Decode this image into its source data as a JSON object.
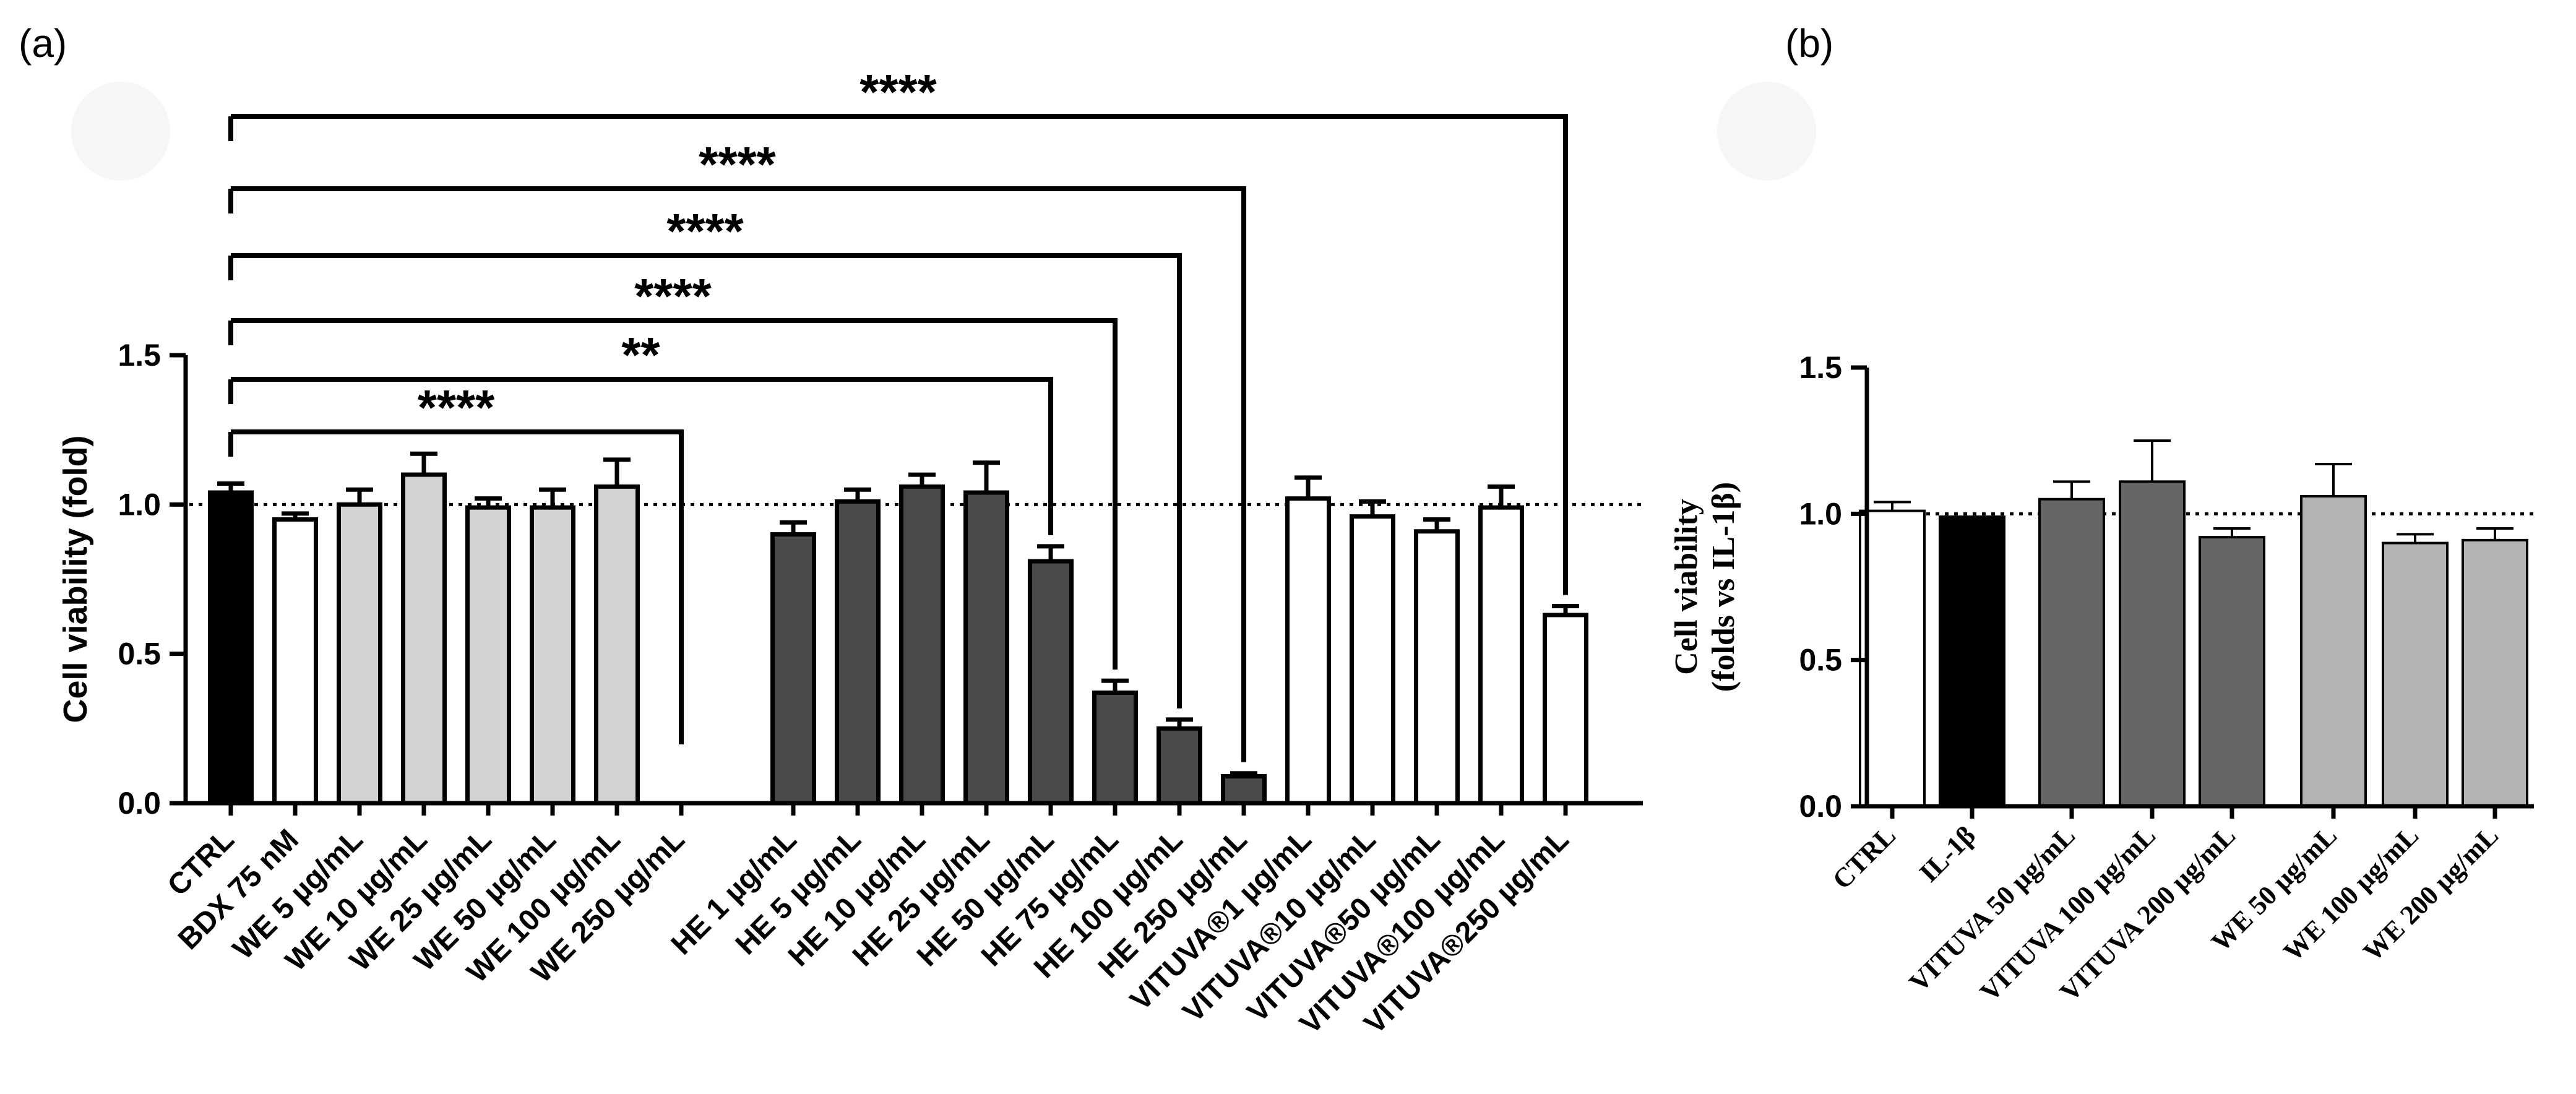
{
  "chart_data": [
    {
      "panel": "(a)",
      "type": "bar",
      "ylabel": "Cell viability (fold)",
      "xlabel": "",
      "ylim": [
        0,
        1.5
      ],
      "yticks": [
        "0.0",
        "0.5",
        "1.0",
        "1.5"
      ],
      "ytick_values": [
        0,
        0.5,
        1.0,
        1.5
      ],
      "reference_line": 1.0,
      "categories": [
        "CTRL",
        "BDX 75 nM",
        "WE 5 µg/mL",
        "WE 10 µg/mL",
        "WE 25 µg/mL",
        "WE 50 µg/mL",
        "WE 100 µg/mL",
        "WE 250 µg/mL",
        "HE 1 µg/mL",
        "HE 5 µg/mL",
        "HE 10 µg/mL",
        "HE 25 µg/mL",
        "HE 50 µg/mL",
        "HE 75 µg/mL",
        "HE 100 µg/mL",
        "HE 250 µg/mL",
        "VITUVA®1 µg/mL",
        "VITUVA®10 µg/mL",
        "VITUVA®50 µg/mL",
        "VITUVA®100 µg/mL",
        "VITUVA®250 µg/mL"
      ],
      "values": [
        1.04,
        0.95,
        1.0,
        1.1,
        0.99,
        0.99,
        1.06,
        0.0,
        0.9,
        1.01,
        1.06,
        1.04,
        0.81,
        0.37,
        0.25,
        0.09,
        1.02,
        0.96,
        0.91,
        0.99,
        0.63
      ],
      "errors": [
        0.03,
        0.02,
        0.05,
        0.07,
        0.03,
        0.06,
        0.09,
        0.0,
        0.04,
        0.04,
        0.04,
        0.1,
        0.05,
        0.04,
        0.03,
        0.01,
        0.07,
        0.05,
        0.04,
        0.07,
        0.03
      ],
      "colors": [
        "#000000",
        "#ffffff",
        "#d3d3d3",
        "#d3d3d3",
        "#d3d3d3",
        "#d3d3d3",
        "#d3d3d3",
        "#d3d3d3",
        "#4a4a4a",
        "#4a4a4a",
        "#4a4a4a",
        "#4a4a4a",
        "#4a4a4a",
        "#4a4a4a",
        "#4a4a4a",
        "#4a4a4a",
        "#ffffff",
        "#ffffff",
        "#ffffff",
        "#ffffff",
        "#ffffff"
      ],
      "significance": [
        {
          "from": 0,
          "to": 7,
          "label": "****"
        },
        {
          "from": 0,
          "to": 12,
          "label": "**"
        },
        {
          "from": 0,
          "to": 13,
          "label": "****"
        },
        {
          "from": 0,
          "to": 14,
          "label": "****"
        },
        {
          "from": 0,
          "to": 15,
          "label": "****"
        },
        {
          "from": 0,
          "to": 20,
          "label": "****"
        }
      ]
    },
    {
      "panel": "(b)",
      "type": "bar",
      "ylabel_line1": "Cell viability",
      "ylabel_line2": "(folds vs IL-1β)",
      "xlabel": "",
      "ylim": [
        0,
        1.5
      ],
      "yticks": [
        "0.0",
        "0.5",
        "1.0",
        "1.5"
      ],
      "ytick_values": [
        0,
        0.5,
        1.0,
        1.5
      ],
      "reference_line": 1.0,
      "categories": [
        "CTRL",
        "IL-1β",
        "VITUVA 50 µg/mL",
        "VITUVA 100 µg/mL",
        "VITUVA 200 µg/mL",
        "WE 50 µg/mL",
        "WE 100 µg/mL",
        "WE 200 µg/mL"
      ],
      "values": [
        1.01,
        0.99,
        1.05,
        1.11,
        0.92,
        1.06,
        0.9,
        0.91
      ],
      "errors": [
        0.03,
        0.0,
        0.06,
        0.14,
        0.03,
        0.11,
        0.03,
        0.04
      ],
      "colors": [
        "#ffffff",
        "#000000",
        "#666666",
        "#666666",
        "#666666",
        "#b4b4b4",
        "#b4b4b4",
        "#b4b4b4"
      ]
    }
  ]
}
